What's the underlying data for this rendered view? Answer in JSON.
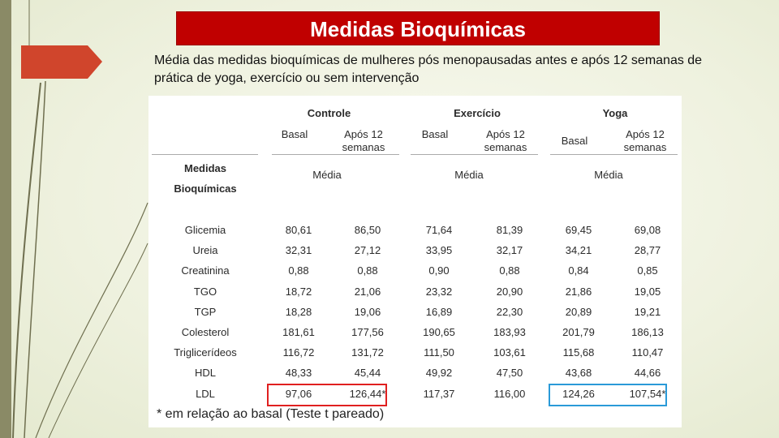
{
  "title": "Medidas Bioquímicas",
  "subtitle": "Média das medidas bioquímicas de mulheres pós menopausadas antes e após 12 semanas de prática de yoga, exercício ou sem intervenção",
  "table": {
    "row_header": [
      "Medidas",
      "Bioquímicas"
    ],
    "groups": [
      "Controle",
      "Exercício",
      "Yoga"
    ],
    "sub": {
      "basal": "Basal",
      "apos1": "Após 12",
      "apos2": "semanas"
    },
    "media": "Média",
    "rows": [
      {
        "name": "Glicemia",
        "values": [
          "80,61",
          "86,50",
          "71,64",
          "81,39",
          "69,45",
          "69,08"
        ]
      },
      {
        "name": "Ureia",
        "values": [
          "32,31",
          "27,12",
          "33,95",
          "32,17",
          "34,21",
          "28,77"
        ]
      },
      {
        "name": "Creatinina",
        "values": [
          "0,88",
          "0,88",
          "0,90",
          "0,88",
          "0,84",
          "0,85"
        ]
      },
      {
        "name": "TGO",
        "values": [
          "18,72",
          "21,06",
          "23,32",
          "20,90",
          "21,86",
          "19,05"
        ]
      },
      {
        "name": "TGP",
        "values": [
          "18,28",
          "19,06",
          "16,89",
          "22,30",
          "20,89",
          "19,21"
        ]
      },
      {
        "name": "Colesterol",
        "values": [
          "181,61",
          "177,56",
          "190,65",
          "183,93",
          "201,79",
          "186,13"
        ]
      },
      {
        "name": "Triglicerídeos",
        "values": [
          "116,72",
          "131,72",
          "111,50",
          "103,61",
          "115,68",
          "110,47"
        ]
      },
      {
        "name": "HDL",
        "values": [
          "48,33",
          "45,44",
          "49,92",
          "47,50",
          "43,68",
          "44,66"
        ]
      },
      {
        "name": "LDL",
        "values": [
          "97,06",
          "126,44*",
          "117,37",
          "116,00",
          "124,26",
          "107,54*"
        ]
      }
    ],
    "footnote": "* em relação ao basal (Teste t pareado)"
  },
  "colors": {
    "title_bg": "#c00000",
    "highlight_red": "#e02020",
    "highlight_blue": "#2a9ad8",
    "side_bar": "#8a8a66"
  }
}
